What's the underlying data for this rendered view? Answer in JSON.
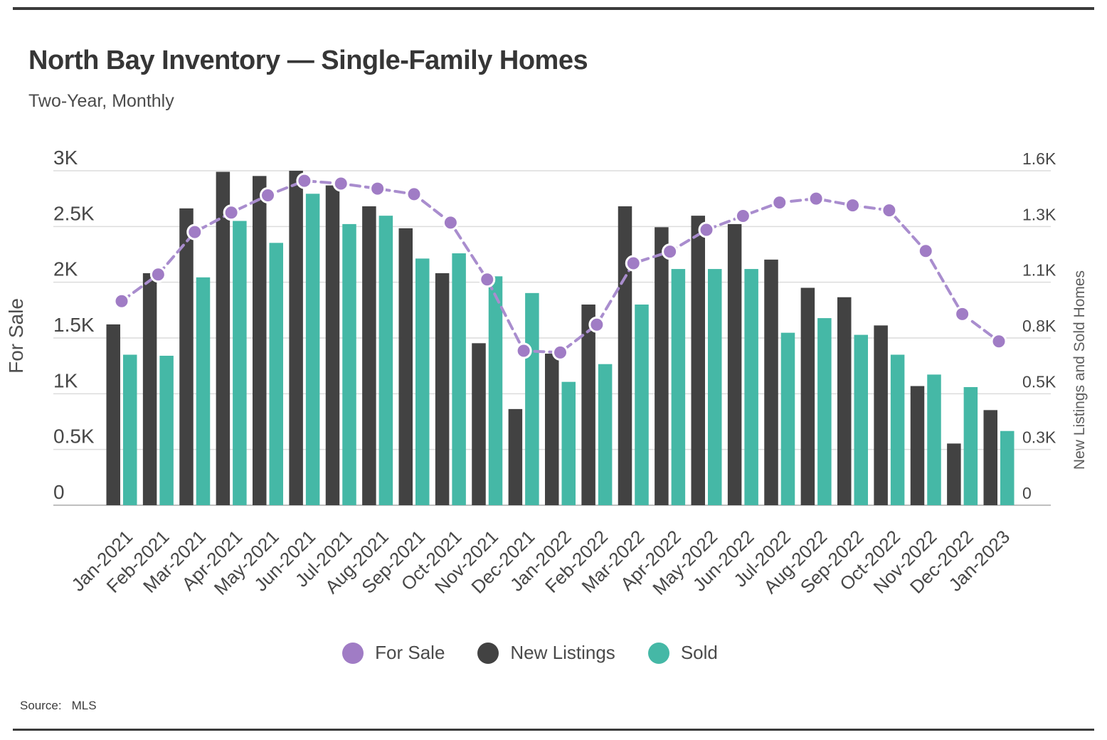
{
  "header": {
    "title": "North Bay Inventory — Single-Family Homes",
    "subtitle": "Two-Year, Monthly"
  },
  "legend": {
    "items": [
      {
        "label": "For Sale",
        "color": "#a07cc5"
      },
      {
        "label": "New Listings",
        "color": "#424242"
      },
      {
        "label": "Sold",
        "color": "#45b8a6"
      }
    ]
  },
  "footer": {
    "source_label": "Source:",
    "source_value": "MLS"
  },
  "chart_data": {
    "type": "combo",
    "title": "North Bay Inventory — Single-Family Homes",
    "subtitle": "Two-Year, Monthly",
    "grid": true,
    "legend_position": "bottom",
    "categories": [
      "Jan-2021",
      "Feb-2021",
      "Mar-2021",
      "Apr-2021",
      "May-2021",
      "Jun-2021",
      "Jul-2021",
      "Aug-2021",
      "Sep-2021",
      "Oct-2021",
      "Nov-2021",
      "Dec-2021",
      "Jan-2022",
      "Feb-2022",
      "Mar-2022",
      "Apr-2022",
      "May-2022",
      "Jun-2022",
      "Jul-2022",
      "Aug-2022",
      "Sep-2022",
      "Oct-2022",
      "Nov-2022",
      "Dec-2022",
      "Jan-2023"
    ],
    "series": [
      {
        "name": "For Sale",
        "type": "line",
        "axis": "left",
        "color": "#a07cc5",
        "line_color": "#a98dce",
        "marker": "circle",
        "line_style": "dashed",
        "values": [
          1830,
          2070,
          2450,
          2625,
          2780,
          2910,
          2885,
          2840,
          2790,
          2535,
          2025,
          1385,
          1370,
          1620,
          2170,
          2275,
          2470,
          2595,
          2715,
          2750,
          2690,
          2645,
          2280,
          1715,
          1470
        ]
      },
      {
        "name": "New Listings",
        "type": "bar",
        "axis": "right",
        "color": "#424242",
        "values": [
          865,
          1110,
          1420,
          1595,
          1575,
          1600,
          1530,
          1430,
          1325,
          1110,
          775,
          460,
          725,
          960,
          1430,
          1330,
          1385,
          1345,
          1175,
          1040,
          995,
          860,
          570,
          295,
          455
        ]
      },
      {
        "name": "Sold",
        "type": "bar",
        "axis": "right",
        "color": "#45b8a6",
        "values": [
          720,
          715,
          1090,
          1360,
          1255,
          1490,
          1345,
          1385,
          1180,
          1205,
          1095,
          1015,
          590,
          675,
          960,
          1130,
          1130,
          1130,
          825,
          895,
          815,
          720,
          625,
          565,
          355
        ]
      }
    ],
    "axes": {
      "left": {
        "title": "For Sale",
        "min": 0,
        "max": 3000,
        "tick_labels": [
          "0",
          "0.5K",
          "1K",
          "1.5K",
          "2K",
          "2.5K",
          "3K"
        ],
        "tick_values": [
          0,
          500,
          1000,
          1500,
          2000,
          2500,
          3000
        ]
      },
      "right": {
        "title": "New Listings and Sold Homes",
        "min": 0,
        "max": 1600,
        "tick_labels": [
          "0",
          "0.3K",
          "0.5K",
          "0.8K",
          "1.1K",
          "1.3K",
          "1.6K"
        ]
      }
    },
    "source": "MLS"
  }
}
